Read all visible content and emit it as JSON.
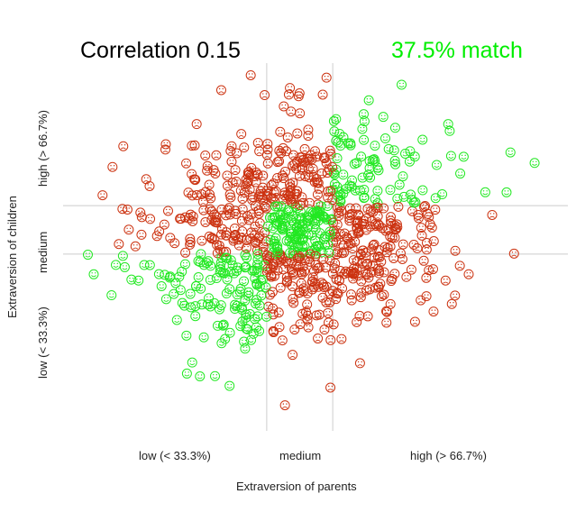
{
  "header": {
    "correlation_text": "Correlation 0.15",
    "match_text": "37.5% match"
  },
  "colors": {
    "match": "#22e822",
    "mismatch": "#cc3311",
    "gridline": "#cccccc",
    "match_title": "#00ee00"
  },
  "chart_data": {
    "type": "scatter",
    "title": "Correlation 0.15",
    "subtitle": "37.5% match",
    "xlabel": "Extraversion of parents",
    "ylabel": "Extraversion of children",
    "x_ticks": [
      "low (< 33.3%)",
      "medium",
      "high (> 66.7%)"
    ],
    "y_ticks": [
      "low (< 33.3%)",
      "medium",
      "high (> 66.7%)"
    ],
    "x_tercile_cuts": [
      -0.43,
      0.43
    ],
    "y_tercile_cuts": [
      -0.43,
      0.43
    ],
    "xlim": [
      -3.2,
      3.2
    ],
    "ylim": [
      -3.6,
      3.2
    ],
    "correlation": 0.15,
    "match_percent": 37.5,
    "point_count": 900,
    "marker_legend": {
      "match": "green smiling face (same tercile for parent and child)",
      "mismatch": "red frowning face (different tercile)"
    },
    "sample_points": [
      [
        -2.1,
        -0.9
      ],
      [
        -1.8,
        -1.0
      ],
      [
        -1.6,
        -1.6
      ],
      [
        -1.3,
        -2.6
      ],
      [
        -1.0,
        -1.7
      ],
      [
        -2.0,
        0.9
      ],
      [
        -1.1,
        1.0
      ],
      [
        0.3,
        2.4
      ],
      [
        0.8,
        1.3
      ],
      [
        1.5,
        1.3
      ],
      [
        1.7,
        0.1
      ],
      [
        1.9,
        -0.9
      ],
      [
        0.4,
        -2.8
      ],
      [
        0.1,
        -1.6
      ],
      [
        -0.7,
        -1.5
      ],
      [
        1.3,
        0.8
      ],
      [
        1.6,
        1.6
      ],
      [
        0.9,
        2.3
      ],
      [
        0.2,
        0.1
      ],
      [
        0.0,
        0.2
      ]
    ]
  }
}
